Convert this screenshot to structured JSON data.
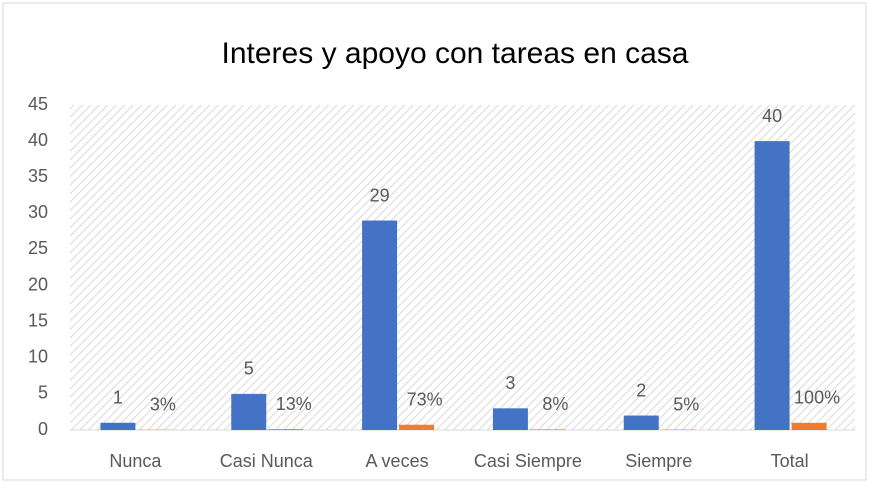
{
  "chart_data": {
    "type": "bar",
    "title": "Interes y  apoyo con tareas en casa",
    "categories": [
      "Nunca",
      "Casi Nunca",
      "A veces",
      "Casi Siempre",
      "Siempre",
      "Total"
    ],
    "series": [
      {
        "color": "#4472c4",
        "values": [
          1,
          5,
          29,
          3,
          2,
          40
        ]
      },
      {
        "color": "#ed7d31",
        "values": [
          0.03,
          0.13,
          0.73,
          0.08,
          0.05,
          1
        ],
        "value_labels": [
          "3%",
          "13%",
          "73%",
          "8%",
          "5%",
          "100%"
        ]
      }
    ],
    "ylim": [
      0,
      45
    ],
    "yticks": [
      0,
      5,
      10,
      15,
      20,
      25,
      30,
      35,
      40,
      45
    ],
    "grid": false
  }
}
